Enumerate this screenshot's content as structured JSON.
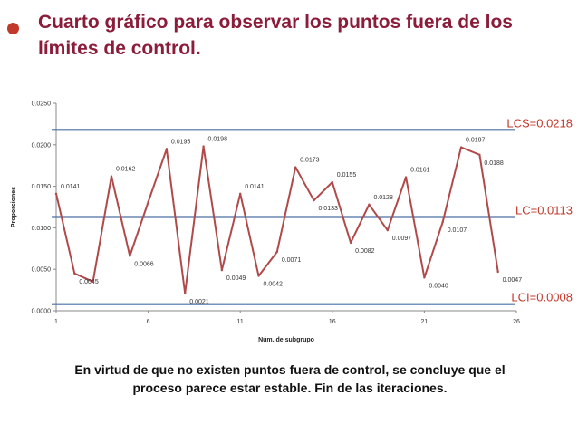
{
  "slide": {
    "title": "Cuarto gráfico para observar los puntos fuera de los límites de control.",
    "caption": "En virtud de que no existen puntos fuera de control, se concluye que el proceso parece estar estable. Fin de las iteraciones."
  },
  "chart_data": {
    "type": "line",
    "title": "",
    "xlabel": "Núm. de subgrupo",
    "ylabel": "Proporciones",
    "xlim": [
      1,
      26
    ],
    "ylim": [
      0,
      0.025
    ],
    "x_ticks": [
      "1",
      "6",
      "11",
      "16",
      "21",
      "26"
    ],
    "y_ticks": [
      "0.0000",
      "0.0050",
      "0.0100",
      "0.0150",
      "0.0200",
      "0.0250"
    ],
    "grid": false,
    "series": [
      {
        "name": "",
        "color": "#b04a4a",
        "x": [
          1,
          2,
          3,
          4,
          5,
          6,
          7,
          8,
          9,
          10,
          11,
          12,
          13,
          14,
          15,
          16,
          17,
          18,
          19,
          20,
          21,
          22,
          23,
          24,
          25
        ],
        "values": [
          0.0141,
          0.0045,
          0.0035,
          0.0162,
          0.0066,
          0.0131,
          0.0195,
          0.0021,
          0.0198,
          0.0049,
          0.0141,
          0.0042,
          0.0071,
          0.0173,
          0.0133,
          0.0155,
          0.0082,
          0.0128,
          0.0097,
          0.0161,
          0.004,
          0.0107,
          0.0197,
          0.0188,
          0.0047
        ],
        "labels": [
          "0.0141",
          "0.0045",
          "",
          "0.0162",
          "0.0066",
          "",
          "0.0195",
          "0.0021",
          "0.0198",
          "0.0049",
          "0.0141",
          "0.0042",
          "0.0071",
          "0.0173",
          "0.0133",
          "0.0155",
          "0.0082",
          "0.0128",
          "0.0097",
          "0.0161",
          "0.0040",
          "0.0107",
          "0.0197",
          "0.0188",
          "0.0047"
        ]
      }
    ],
    "control_limits": [
      {
        "label": "LCS=0.0218",
        "value": 0.0218
      },
      {
        "label": "LC=0.0113",
        "value": 0.0113
      },
      {
        "label": "LCI=0.0008",
        "value": 0.0008
      }
    ],
    "colors": {
      "line": "#b04a4a",
      "limits": "#4a6fa5",
      "limit_text": "#c0392b"
    }
  }
}
